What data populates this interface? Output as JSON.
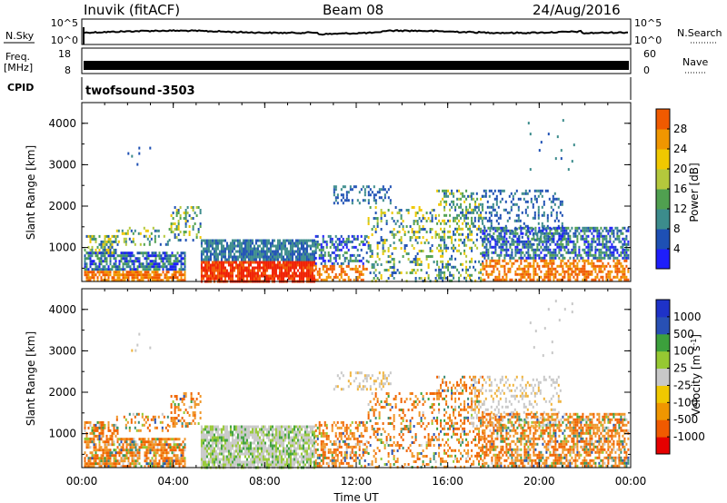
{
  "header": {
    "station": "Inuvik (fitACF)",
    "beam": "Beam 08",
    "date": "24/Aug/2016"
  },
  "noise_panel": {
    "left_label": "N.Sky",
    "left_ticks": [
      "10^5",
      "10^0"
    ],
    "right_ticks": [
      "10^5",
      "10^0"
    ],
    "right_label": "N.Search"
  },
  "freq_panel": {
    "left_label_1": "Freq.",
    "left_label_2": "[MHz]",
    "left_ticks": [
      "18",
      "8"
    ],
    "right_ticks": [
      "60",
      "0"
    ],
    "right_label": "Nave"
  },
  "cpid_panel": {
    "label": "CPID",
    "program": "twofsound",
    "id": "-3503"
  },
  "colors": {
    "power": [
      "#1e1efa",
      "#1e50b4",
      "#3c8c8c",
      "#50a050",
      "#b4c83c",
      "#f0c800",
      "#f09600",
      "#f05a00",
      "#f01e00",
      "#e60000"
    ],
    "velocity": [
      "#e60000",
      "#f02800",
      "#f06400",
      "#f09628",
      "#f0b43c",
      "#c8c8c8",
      "#96c832",
      "#3ca03c",
      "#3c8c78",
      "#2850b4",
      "#1e32c8"
    ]
  },
  "chart_data": [
    {
      "type": "heatmap",
      "name": "power",
      "ylabel": "Slant Range [km]",
      "ylim": [
        180,
        4500
      ],
      "yticks": [
        "1000",
        "2000",
        "3000",
        "4000"
      ],
      "xlim": [
        0,
        24
      ],
      "xticks": [
        "00:00",
        "04:00",
        "08:00",
        "12:00",
        "16:00",
        "20:00",
        "00:00"
      ],
      "colorbar_label": "Power [dB]",
      "colorbar_ticks": [
        "4",
        "8",
        "12",
        "16",
        "20",
        "24",
        "28"
      ],
      "colorbar_range": [
        0,
        32
      ]
    },
    {
      "type": "heatmap",
      "name": "velocity",
      "ylabel": "Slant Range [km]",
      "ylim": [
        180,
        4500
      ],
      "yticks": [
        "1000",
        "2000",
        "3000",
        "4000"
      ],
      "xlim": [
        0,
        24
      ],
      "xticks": [
        "00:00",
        "04:00",
        "08:00",
        "12:00",
        "16:00",
        "20:00",
        "00:00"
      ],
      "xlabel": "Time UT",
      "colorbar_label": "Velocity [m s-1]",
      "colorbar_ticks": [
        "1000",
        "500",
        "100",
        "25",
        "-25",
        "-100",
        "-500",
        "-1000"
      ]
    }
  ]
}
